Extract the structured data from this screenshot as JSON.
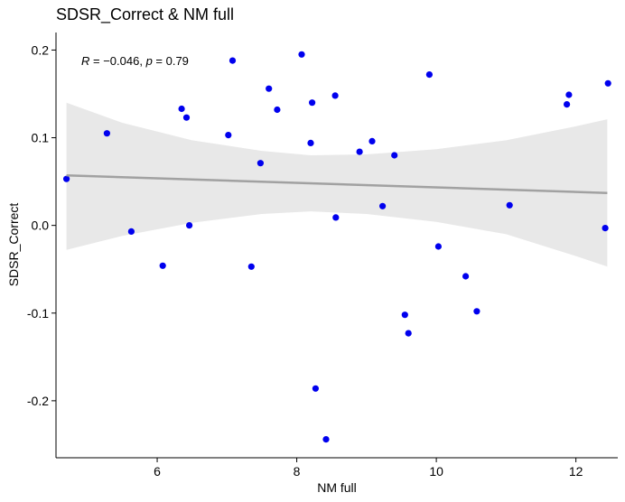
{
  "chart_data": {
    "type": "scatter",
    "title": "SDSR_Correct & NM full",
    "xlabel": "NM full",
    "ylabel": "SDSR_Correct",
    "xlim": [
      4.55,
      12.6
    ],
    "ylim": [
      -0.265,
      0.22
    ],
    "x_ticks": [
      6,
      8,
      10,
      12
    ],
    "x_tick_labels": [
      "6",
      "8",
      "10",
      "12"
    ],
    "y_ticks": [
      -0.2,
      -0.1,
      0.0,
      0.1,
      0.2
    ],
    "y_tick_labels": [
      "-0.2",
      "-0.1",
      "0.0",
      "0.1",
      "0.2"
    ],
    "annotation": {
      "r_symbol": "R",
      "r_text": " = −0.046, ",
      "p_symbol": "p",
      "p_text": " = 0.79"
    },
    "point_color": "#0000ee",
    "regression": {
      "x_start": 4.7,
      "x_end": 12.45,
      "y_start": 0.057,
      "y_end": 0.037,
      "line_color": "#999999",
      "band_color": "#e8e8e8",
      "band": {
        "x": [
          4.7,
          5.5,
          6.5,
          7.5,
          8.2,
          9.0,
          10.0,
          11.0,
          12.0,
          12.45
        ],
        "upper": [
          0.14,
          0.117,
          0.097,
          0.085,
          0.08,
          0.081,
          0.087,
          0.097,
          0.113,
          0.121
        ],
        "lower": [
          -0.028,
          -0.012,
          0.003,
          0.013,
          0.016,
          0.013,
          0.004,
          -0.01,
          -0.035,
          -0.047
        ]
      }
    },
    "points": [
      {
        "x": 4.7,
        "y": 0.053
      },
      {
        "x": 5.28,
        "y": 0.105
      },
      {
        "x": 5.63,
        "y": -0.007
      },
      {
        "x": 6.08,
        "y": -0.046
      },
      {
        "x": 6.35,
        "y": 0.133
      },
      {
        "x": 6.42,
        "y": 0.123
      },
      {
        "x": 6.46,
        "y": 0.0
      },
      {
        "x": 7.02,
        "y": 0.103
      },
      {
        "x": 7.08,
        "y": 0.188
      },
      {
        "x": 7.35,
        "y": -0.047
      },
      {
        "x": 7.48,
        "y": 0.071
      },
      {
        "x": 7.6,
        "y": 0.156
      },
      {
        "x": 7.72,
        "y": 0.132
      },
      {
        "x": 8.07,
        "y": 0.195
      },
      {
        "x": 8.2,
        "y": 0.094
      },
      {
        "x": 8.22,
        "y": 0.14
      },
      {
        "x": 8.27,
        "y": -0.186
      },
      {
        "x": 8.42,
        "y": -0.244
      },
      {
        "x": 8.55,
        "y": 0.148
      },
      {
        "x": 8.56,
        "y": 0.009
      },
      {
        "x": 8.9,
        "y": 0.084
      },
      {
        "x": 9.08,
        "y": 0.096
      },
      {
        "x": 9.23,
        "y": 0.022
      },
      {
        "x": 9.4,
        "y": 0.08
      },
      {
        "x": 9.55,
        "y": -0.102
      },
      {
        "x": 9.6,
        "y": -0.123
      },
      {
        "x": 9.9,
        "y": 0.172
      },
      {
        "x": 10.03,
        "y": -0.024
      },
      {
        "x": 10.42,
        "y": -0.058
      },
      {
        "x": 10.58,
        "y": -0.098
      },
      {
        "x": 11.05,
        "y": 0.023
      },
      {
        "x": 11.87,
        "y": 0.138
      },
      {
        "x": 11.9,
        "y": 0.149
      },
      {
        "x": 12.42,
        "y": -0.003
      },
      {
        "x": 12.46,
        "y": 0.162
      }
    ]
  }
}
